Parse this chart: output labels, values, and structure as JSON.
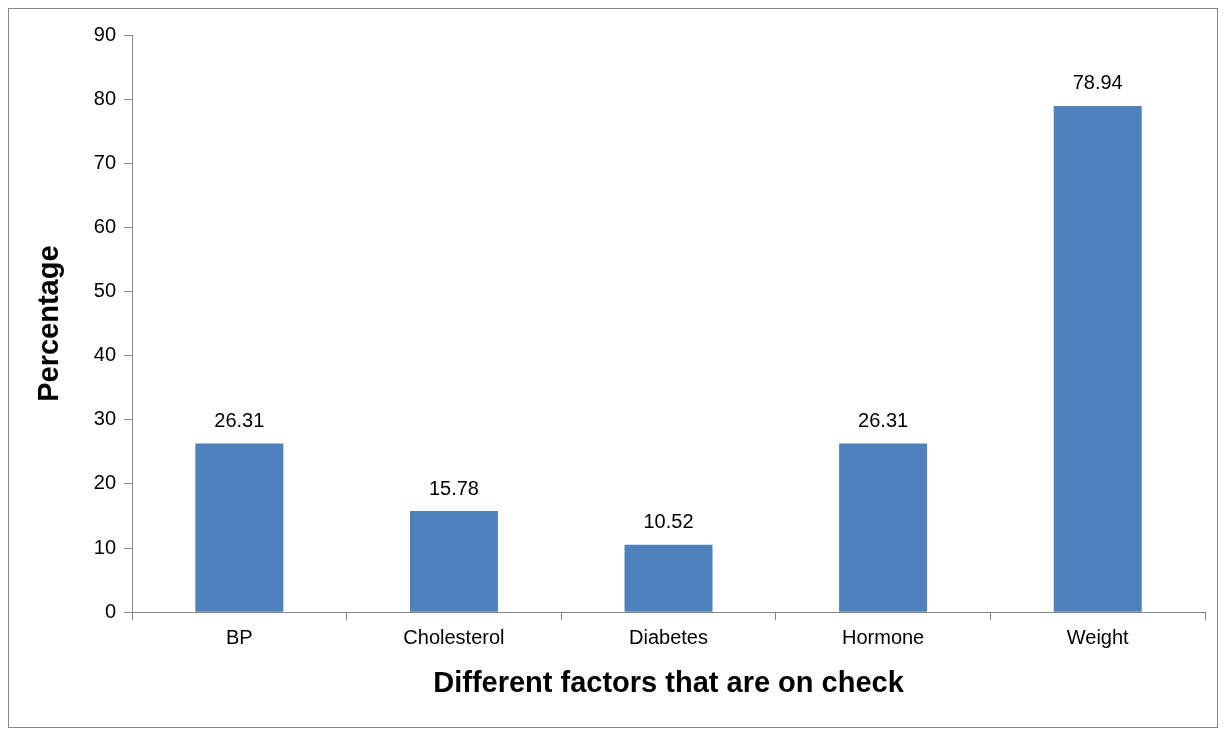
{
  "chart_data": {
    "type": "bar",
    "xlabel": "Different factors that are on check",
    "ylabel": "Percentage",
    "categories": [
      "BP",
      "Cholesterol",
      "Diabetes",
      "Hormone",
      "Weight"
    ],
    "values": [
      26.31,
      15.78,
      10.52,
      26.31,
      78.94
    ],
    "color": "#4f81bd",
    "ylim": [
      0,
      90
    ],
    "yticks": [
      0,
      10,
      20,
      30,
      40,
      50,
      60,
      70,
      80,
      90
    ],
    "data_labels": true
  }
}
